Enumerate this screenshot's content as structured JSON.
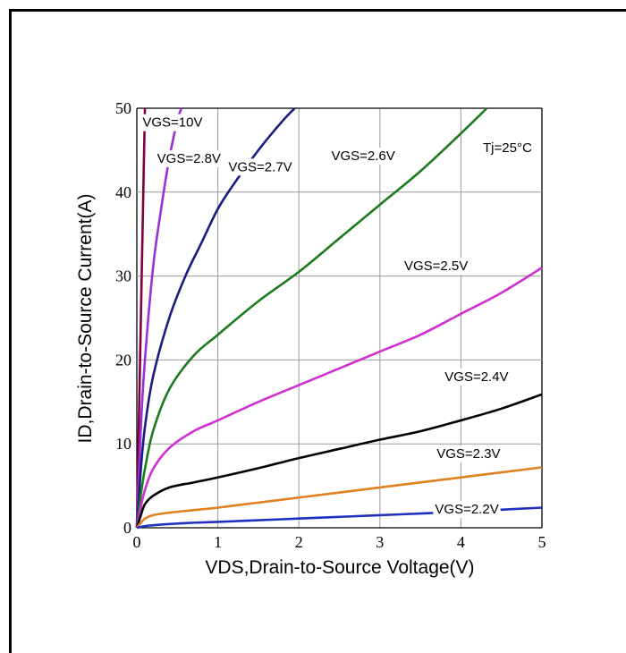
{
  "chart_data": {
    "type": "line",
    "title": "",
    "xlabel": "VDS,Drain-to-Source Voltage(V)",
    "ylabel": "ID,Drain-to-Source Current(A)",
    "xlim": [
      0,
      5
    ],
    "ylim": [
      0,
      50
    ],
    "x_ticks": [
      0,
      1,
      2,
      3,
      4,
      5
    ],
    "y_ticks": [
      0,
      10,
      20,
      30,
      40,
      50
    ],
    "grid": true,
    "annotation": "Tj=25°C",
    "series": [
      {
        "name": "VGS=10V",
        "color": "#800040",
        "x": [
          0,
          0.02,
          0.04,
          0.06,
          0.08,
          0.1
        ],
        "y": [
          0,
          10,
          20,
          30,
          40,
          50
        ]
      },
      {
        "name": "VGS=2.8V",
        "color": "#9a30d8",
        "x": [
          0,
          0.05,
          0.1,
          0.2,
          0.3,
          0.4,
          0.5,
          0.55
        ],
        "y": [
          0,
          12,
          20,
          31,
          38,
          44,
          48.5,
          50
        ]
      },
      {
        "name": "VGS=2.7V",
        "color": "#1c1c80",
        "x": [
          0,
          0.05,
          0.1,
          0.2,
          0.4,
          0.6,
          0.8,
          1.0,
          1.2,
          1.5,
          1.8,
          1.95
        ],
        "y": [
          0,
          7,
          12,
          18,
          25,
          30,
          34,
          38,
          41,
          45,
          48.5,
          50
        ]
      },
      {
        "name": "VGS=2.6V",
        "color": "#1e7a1e",
        "x": [
          0,
          0.05,
          0.1,
          0.2,
          0.4,
          0.7,
          1.0,
          1.5,
          2.0,
          2.5,
          3.0,
          3.5,
          4.0,
          4.32
        ],
        "y": [
          0,
          4,
          7,
          11.5,
          16.5,
          20.5,
          23,
          27,
          30.5,
          34.5,
          38.5,
          42.5,
          47,
          50
        ]
      },
      {
        "name": "VGS=2.5V",
        "color": "#d030d0",
        "x": [
          0,
          0.05,
          0.1,
          0.2,
          0.4,
          0.7,
          1.0,
          1.5,
          2.0,
          2.5,
          3.0,
          3.5,
          4.0,
          4.5,
          5.0
        ],
        "y": [
          0,
          2.5,
          4.5,
          7,
          9.5,
          11.5,
          12.8,
          15,
          17,
          19,
          21,
          23,
          25.5,
          28,
          31
        ]
      },
      {
        "name": "VGS=2.4V",
        "color": "#000000",
        "x": [
          0,
          0.05,
          0.1,
          0.2,
          0.4,
          0.7,
          1.0,
          1.5,
          2.0,
          2.5,
          3.0,
          3.5,
          4.0,
          4.5,
          5.0
        ],
        "y": [
          0,
          1.5,
          2.8,
          3.8,
          4.8,
          5.4,
          6.0,
          7.1,
          8.3,
          9.4,
          10.5,
          11.5,
          12.8,
          14.2,
          15.9
        ]
      },
      {
        "name": "VGS=2.3V",
        "color": "#e08020",
        "x": [
          0,
          0.05,
          0.1,
          0.2,
          0.4,
          0.7,
          1.0,
          1.5,
          2.0,
          2.5,
          3.0,
          3.5,
          4.0,
          4.5,
          5.0
        ],
        "y": [
          0,
          0.6,
          1.1,
          1.5,
          1.8,
          2.1,
          2.4,
          3.0,
          3.6,
          4.2,
          4.8,
          5.4,
          6.0,
          6.6,
          7.2
        ]
      },
      {
        "name": "VGS=2.2V",
        "color": "#2030c0",
        "x": [
          0,
          0.1,
          0.2,
          0.4,
          0.7,
          1.0,
          1.5,
          2.0,
          2.5,
          3.0,
          3.5,
          4.0,
          4.5,
          5.0
        ],
        "y": [
          0,
          0.2,
          0.3,
          0.45,
          0.6,
          0.7,
          0.9,
          1.1,
          1.3,
          1.5,
          1.7,
          1.9,
          2.15,
          2.4
        ]
      }
    ],
    "series_labels": [
      {
        "text": "VGS=10V",
        "x": 0.07,
        "y": 47.8
      },
      {
        "text": "VGS=2.8V",
        "x": 0.25,
        "y": 43.5
      },
      {
        "text": "VGS=2.7V",
        "x": 1.13,
        "y": 42.5
      },
      {
        "text": "VGS=2.6V",
        "x": 2.4,
        "y": 43.8
      },
      {
        "text": "VGS=2.5V",
        "x": 3.3,
        "y": 30.7
      },
      {
        "text": "VGS=2.4V",
        "x": 3.8,
        "y": 17.5
      },
      {
        "text": "VGS=2.3V",
        "x": 3.7,
        "y": 8.3
      },
      {
        "text": "VGS=2.2V",
        "x": 3.68,
        "y": 1.7
      }
    ]
  }
}
